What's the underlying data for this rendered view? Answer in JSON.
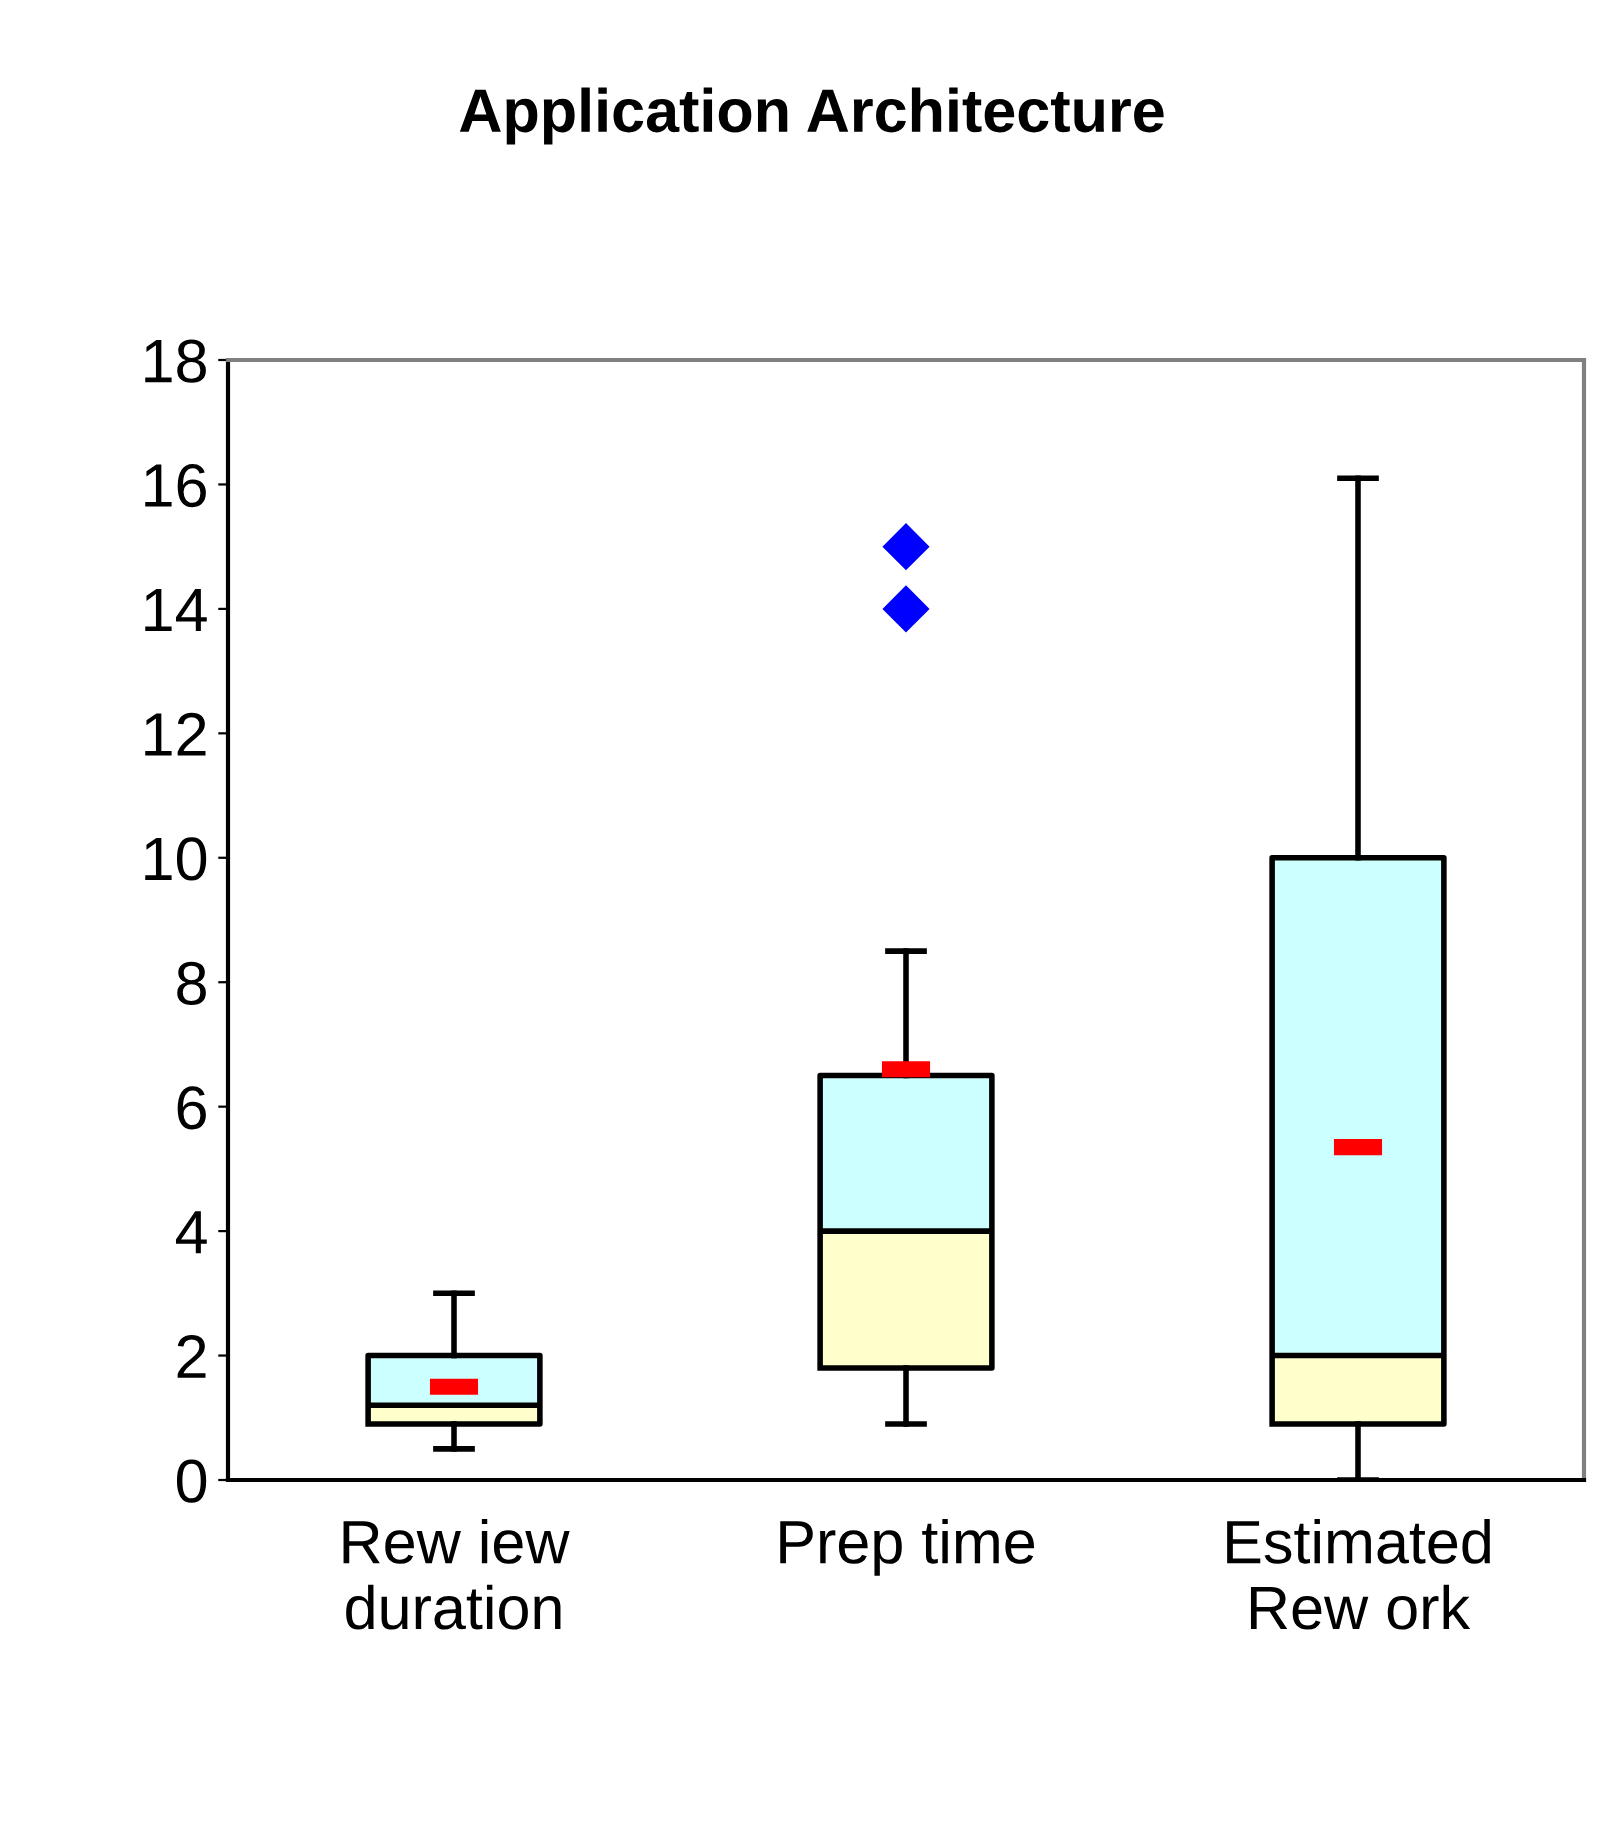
{
  "chart_data": {
    "type": "box",
    "title": "Application Architecture",
    "categories": [
      "Rew iew\nduration",
      "Prep time",
      "Estimated\nRew ork"
    ],
    "boxes": [
      {
        "low": 0.5,
        "q1": 0.9,
        "median": 1.2,
        "q3": 2.0,
        "high": 3.0
      },
      {
        "low": 0.9,
        "q1": 1.8,
        "median": 4.0,
        "q3": 6.5,
        "high": 8.5,
        "outliers": [
          14,
          15
        ]
      },
      {
        "low": 0,
        "q1": 0.9,
        "median": 2.0,
        "q3": 10.0,
        "high": 16.1
      }
    ],
    "colors": [
      [
        "#ffffcc",
        "#ccffff"
      ],
      [
        "#ffffcc",
        "#ccffff"
      ],
      [
        "#ffffcc",
        "#ccffff"
      ]
    ],
    "series": [
      {
        "type": "scatter",
        "x": [
          "Rew iew\nduration",
          "Prep time",
          "Estimated\nRew ork"
        ],
        "values": [
          1.5,
          6.6,
          5.35
        ],
        "color": "#ff0000"
      }
    ],
    "ylim": [
      0,
      18
    ],
    "yticks": [
      0,
      2,
      4,
      6,
      8,
      10,
      12,
      14,
      16,
      18
    ],
    "grid": false,
    "legend": false
  }
}
